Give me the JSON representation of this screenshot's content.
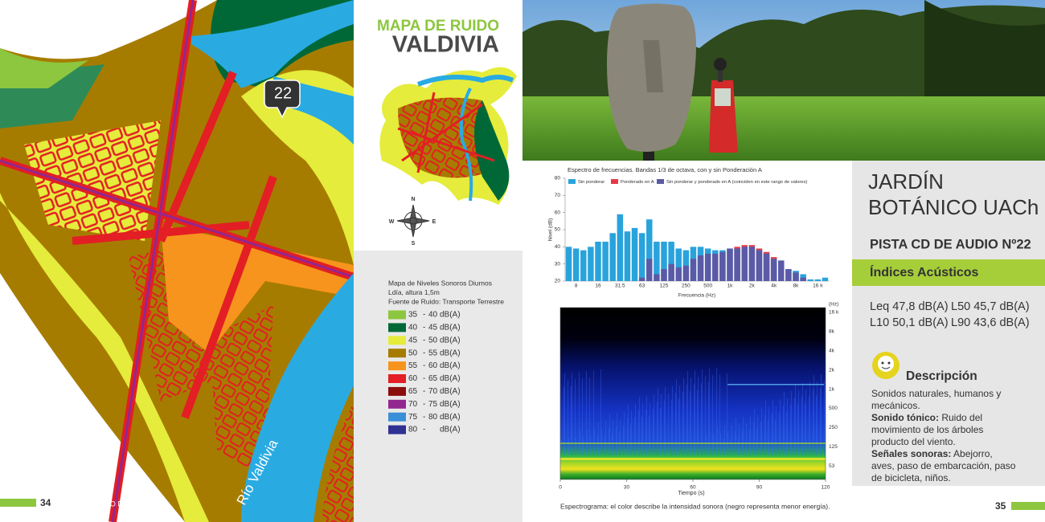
{
  "map": {
    "marker": "22",
    "river": "Río Valdivia"
  },
  "footer_left": {
    "page": "34",
    "title": "/ MAPA SONORO DE VALDIVIA"
  },
  "header": {
    "kicker": "MAPA DE RUIDO",
    "title": "VALDIVIA"
  },
  "compass": {
    "n": "N",
    "e": "E",
    "s": "S",
    "w": "W"
  },
  "legend": {
    "lines": [
      "Mapa de Niveles Sonoros Diurnos",
      "Ldía, altura 1,5m",
      "Fuente de Ruido: Transporte Terrestre"
    ],
    "separator": "-",
    "unit": "dB(A)",
    "items": [
      {
        "from": 35,
        "to": 40,
        "color": "#8dc63f"
      },
      {
        "from": 40,
        "to": 45,
        "color": "#006837"
      },
      {
        "from": 45,
        "to": 50,
        "color": "#e5ec3c"
      },
      {
        "from": 50,
        "to": 55,
        "color": "#a67c00"
      },
      {
        "from": 55,
        "to": 60,
        "color": "#f7941d"
      },
      {
        "from": 60,
        "to": 65,
        "color": "#e31e24"
      },
      {
        "from": 65,
        "to": 70,
        "color": "#8b0e0e"
      },
      {
        "from": 70,
        "to": 75,
        "color": "#92278f"
      },
      {
        "from": 75,
        "to": 80,
        "color": "#3b8fd9"
      },
      {
        "from": 80,
        "to": null,
        "color": "#2e3192"
      }
    ]
  },
  "chart_data": {
    "type": "bar",
    "title": "Espectro de frecuencias. Bandas 1/3 de octava, con y sin Ponderación A",
    "x_label": "Frecuencia (Hz)",
    "y_label": "Nivel (dB)",
    "categories": [
      null,
      "8",
      null,
      null,
      "16",
      null,
      null,
      "31.5",
      null,
      null,
      "63",
      null,
      null,
      "125",
      null,
      null,
      "250",
      null,
      null,
      "500",
      null,
      null,
      "1k",
      null,
      null,
      "2k",
      null,
      null,
      "4k",
      null,
      null,
      "8k",
      null,
      null,
      "16 k",
      null
    ],
    "series": [
      {
        "name": "Sin ponderar",
        "color": "#29a3dc",
        "values": [
          40,
          39,
          38,
          40,
          43,
          43,
          48,
          59,
          49,
          51,
          48,
          56,
          43,
          43,
          43,
          39,
          38,
          40,
          40,
          39,
          38,
          38,
          39,
          39,
          40,
          40,
          38,
          36,
          33,
          32,
          27,
          26,
          24,
          21,
          21,
          22
        ]
      },
      {
        "name": "Ponderado en A",
        "color": "#e63946",
        "values": [
          null,
          null,
          null,
          null,
          null,
          null,
          null,
          null,
          null,
          null,
          22,
          33,
          24,
          27,
          30,
          28,
          29,
          33,
          35,
          36,
          36,
          37,
          39,
          40,
          41,
          41,
          39,
          37,
          34,
          32,
          27,
          25,
          22,
          null,
          null,
          null
        ]
      }
    ],
    "overlap": {
      "name": "Sin ponderar y ponderado en A (coinciden en este rango de valores)",
      "color": "#5b5aa6"
    },
    "ylim": [
      20,
      80
    ],
    "yticks": [
      20,
      30,
      40,
      50,
      60,
      70,
      80
    ]
  },
  "spectrogram": {
    "x_label": "Tiempo (s)",
    "xlim": [
      0,
      120
    ],
    "xticks": [
      0,
      30,
      60,
      90,
      120
    ],
    "y_unit": "(Hz)",
    "y_labels": [
      "16 k",
      "8k",
      "4k",
      "2k",
      "1k",
      "500",
      "250",
      "125",
      "53"
    ],
    "caption": "Espectrograma: el color describe la intensidad sonora (negro representa menor energía)."
  },
  "panel": {
    "title_lines": [
      "JARDÍN",
      "BOTÁNICO UACh"
    ],
    "track": "PISTA CD DE AUDIO Nº22",
    "indices_title": "Índices Acústicos",
    "indices": [
      [
        "Leq 47,8 dB(A)",
        "L50 45,7 dB(A)"
      ],
      [
        "L10 50,1 dB(A)",
        "L90 43,6 dB(A)"
      ]
    ],
    "description_title": "Descripción",
    "description": {
      "intro": "Sonidos naturales, humanos y mecánicos.",
      "items": [
        {
          "label": "Sonido tónico:",
          "text": "Ruido del movimiento de los árboles producto del viento."
        },
        {
          "label": "Señales sonoras:",
          "text": "Abejorro, aves, paso de embarcación, paso de bicicleta, niños."
        }
      ]
    }
  },
  "footer_right": {
    "page": "35"
  }
}
